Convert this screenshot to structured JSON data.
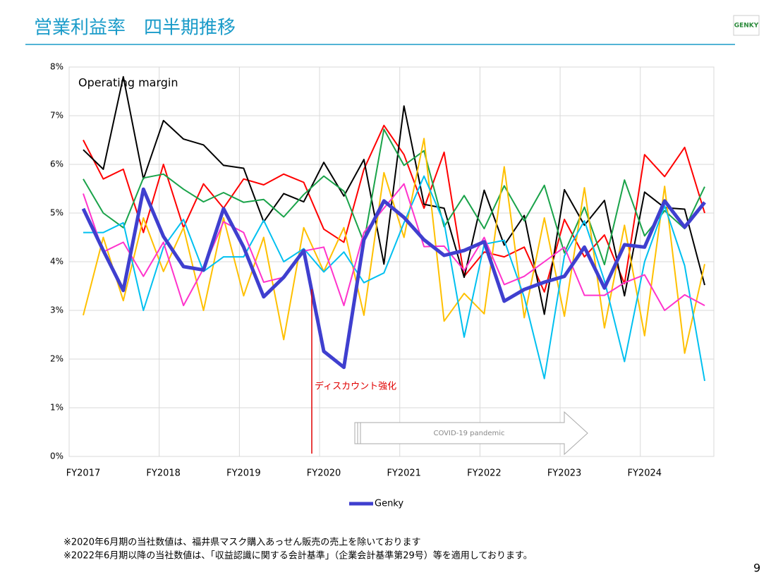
{
  "header": {
    "title": "営業利益率　四半期推移",
    "logo": "GENKY"
  },
  "chart_data": {
    "type": "line",
    "title": "Operating margin",
    "categories": [
      "FY2017",
      null,
      null,
      null,
      "FY2018",
      null,
      null,
      null,
      "FY2019",
      null,
      null,
      null,
      "FY2020",
      null,
      null,
      null,
      "FY2021",
      null,
      null,
      null,
      "FY2022",
      null,
      null,
      null,
      "FY2023",
      null,
      null,
      null,
      "FY2024",
      null,
      null,
      null
    ],
    "series": [
      {
        "color": "#ff0000",
        "values": [
          6.5,
          5.7,
          5.9,
          4.6,
          6.0,
          4.7,
          5.6,
          5.1,
          5.7,
          5.58,
          5.8,
          5.63,
          4.67,
          4.4,
          5.9,
          6.8,
          6.2,
          5.1,
          6.25,
          3.7,
          4.2,
          4.1,
          4.3,
          3.38,
          4.87,
          4.1,
          4.55,
          3.55,
          6.2,
          5.75,
          6.35,
          5.0
        ]
      },
      {
        "color": "#000000",
        "values": [
          6.3,
          5.9,
          7.8,
          5.7,
          6.9,
          6.52,
          6.4,
          5.98,
          5.92,
          4.82,
          5.4,
          5.23,
          6.04,
          5.35,
          6.1,
          3.95,
          7.2,
          5.18,
          5.1,
          3.68,
          5.47,
          4.34,
          4.95,
          2.92,
          5.48,
          4.75,
          5.26,
          3.3,
          5.43,
          5.11,
          5.08,
          3.52
        ]
      },
      {
        "color": "#1aa34a",
        "values": [
          5.7,
          5.0,
          4.7,
          5.72,
          5.8,
          5.49,
          5.23,
          5.42,
          5.22,
          5.28,
          4.92,
          5.38,
          5.76,
          5.45,
          4.4,
          6.72,
          5.98,
          6.28,
          4.72,
          5.36,
          4.68,
          5.56,
          4.84,
          5.57,
          4.18,
          5.12,
          3.94,
          5.68,
          4.53,
          5.05,
          4.68,
          5.54
        ]
      },
      {
        "color": "#ffc000",
        "values": [
          2.9,
          4.5,
          3.2,
          4.9,
          3.8,
          4.7,
          3.0,
          4.9,
          3.3,
          4.5,
          2.4,
          4.7,
          3.8,
          4.7,
          2.9,
          5.83,
          4.5,
          6.53,
          2.78,
          3.35,
          2.93,
          5.95,
          2.85,
          4.9,
          2.88,
          5.52,
          2.64,
          4.75,
          2.48,
          5.55,
          2.12,
          3.95
        ]
      },
      {
        "color": "#00c0f0",
        "values": [
          4.6,
          4.6,
          4.8,
          3.0,
          4.3,
          4.87,
          3.8,
          4.1,
          4.1,
          4.85,
          4.0,
          4.27,
          3.79,
          4.2,
          3.57,
          3.77,
          4.8,
          5.76,
          4.8,
          2.45,
          4.36,
          4.44,
          3.27,
          1.6,
          4.12,
          4.84,
          3.61,
          1.95,
          4.0,
          5.15,
          3.92,
          1.55
        ]
      },
      {
        "color": "#ff33cc",
        "values": [
          5.4,
          4.2,
          4.4,
          3.7,
          4.4,
          3.1,
          3.86,
          4.82,
          4.6,
          3.58,
          3.68,
          4.22,
          4.3,
          3.1,
          4.6,
          5.1,
          5.6,
          4.31,
          4.32,
          3.82,
          4.5,
          3.53,
          3.7,
          4.0,
          4.3,
          3.31,
          3.31,
          3.57,
          3.73,
          3.0,
          3.32,
          3.1
        ]
      },
      {
        "name": "Genky",
        "color": "#3f3fcf",
        "values": [
          5.09,
          4.23,
          3.41,
          5.49,
          4.52,
          3.9,
          3.83,
          5.09,
          4.3,
          3.28,
          3.68,
          4.23,
          2.16,
          1.83,
          4.45,
          5.25,
          4.91,
          4.45,
          4.13,
          4.23,
          4.41,
          3.19,
          3.43,
          3.58,
          3.7,
          4.3,
          3.46,
          4.35,
          4.3,
          5.25,
          4.71,
          5.22
        ]
      }
    ],
    "ylim": [
      0,
      8
    ],
    "yticks": [
      {
        "value": 0,
        "label": "0%"
      },
      {
        "value": 1,
        "label": "1%"
      },
      {
        "value": 2,
        "label": "2%"
      },
      {
        "value": 3,
        "label": "3%"
      },
      {
        "value": 4,
        "label": "4%"
      },
      {
        "value": 5,
        "label": "5%"
      },
      {
        "value": 6,
        "label": "6%"
      },
      {
        "value": 7,
        "label": "7%"
      },
      {
        "value": 8,
        "label": "8%"
      }
    ],
    "grid": true,
    "legend": "bottom",
    "annotations": [
      "ディスカウント強化",
      "COVID-19 pandemic"
    ]
  },
  "footnotes": [
    "※2020年6月期の当社数値は、福井県マスク購入あっせん販売の売上を除いております",
    "※2022年6月期以降の当社数値は、「収益認識に関する会計基準」（企業会計基準第29号）等を適用しております。"
  ],
  "page_number": "9"
}
